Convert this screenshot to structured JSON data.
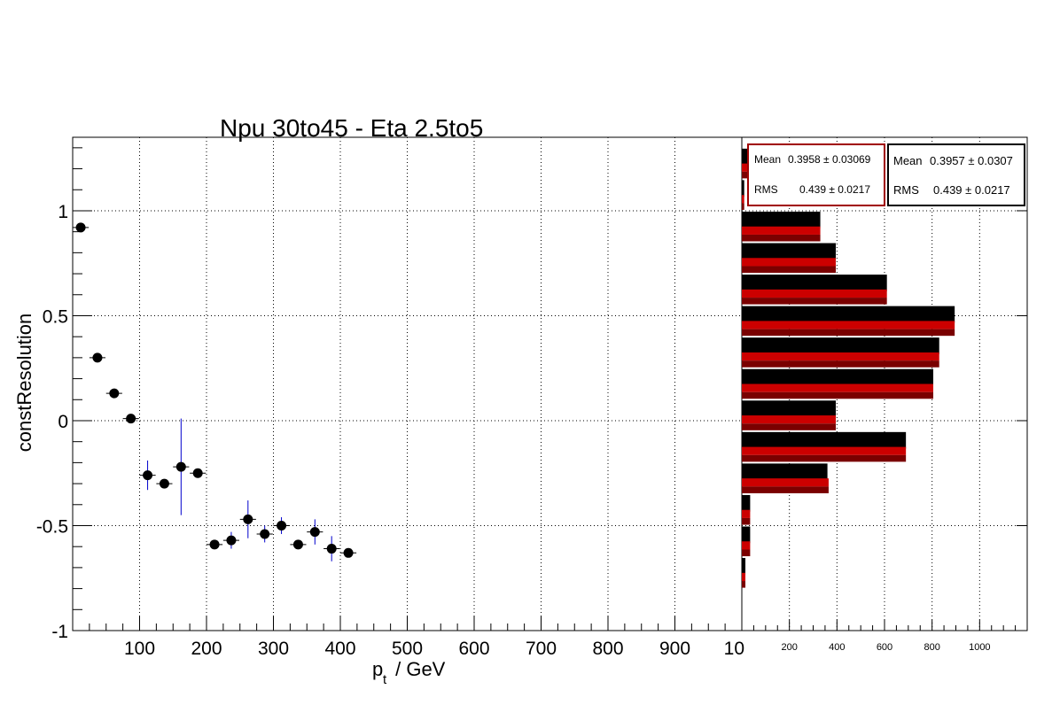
{
  "title": "Npu 30to45 - Eta 2.5to5",
  "colors": {
    "marker": "#000000",
    "error_bar_main": "#0000cc",
    "hist_black": "#000000",
    "hist_red": "#cc0000",
    "hist_red_dark": "#7a0000",
    "grid": "#000000"
  },
  "chart_data": [
    {
      "type": "scatter",
      "title": "Npu 30to45 - Eta 2.5to5",
      "xlabel_main": "p",
      "xlabel_sub": "t",
      "xlabel_rest": " / GeV",
      "ylabel": "constResolution",
      "xlim": [
        0,
        1000
      ],
      "ylim": [
        -1,
        1.35
      ],
      "xticks": [
        100,
        200,
        300,
        400,
        500,
        600,
        700,
        800,
        900
      ],
      "xtick_labels": [
        "100",
        "200",
        "300",
        "400",
        "500",
        "600",
        "700",
        "800",
        "900"
      ],
      "xtick_label_last": "10",
      "yticks": [
        -1,
        -0.5,
        0,
        0.5,
        1
      ],
      "ytick_labels": [
        "-1",
        "-0.5",
        "0",
        "0.5",
        "1"
      ],
      "grid": true,
      "points": [
        {
          "x": 12,
          "y": 0.92,
          "xerr": 12,
          "yerr": 0.01
        },
        {
          "x": 37,
          "y": 0.3,
          "xerr": 12,
          "yerr": 0.01
        },
        {
          "x": 62,
          "y": 0.13,
          "xerr": 12,
          "yerr": 0.01
        },
        {
          "x": 87,
          "y": 0.01,
          "xerr": 12,
          "yerr": 0.01
        },
        {
          "x": 112,
          "y": -0.26,
          "xerr": 12,
          "yerr": 0.07
        },
        {
          "x": 137,
          "y": -0.3,
          "xerr": 12,
          "yerr": 0.01
        },
        {
          "x": 162,
          "y": -0.22,
          "xerr": 12,
          "yerr": 0.23
        },
        {
          "x": 187,
          "y": -0.25,
          "xerr": 12,
          "yerr": 0.02
        },
        {
          "x": 212,
          "y": -0.59,
          "xerr": 12,
          "yerr": 0.01
        },
        {
          "x": 237,
          "y": -0.57,
          "xerr": 12,
          "yerr": 0.04
        },
        {
          "x": 262,
          "y": -0.47,
          "xerr": 12,
          "yerr": 0.09
        },
        {
          "x": 287,
          "y": -0.54,
          "xerr": 12,
          "yerr": 0.04
        },
        {
          "x": 312,
          "y": -0.5,
          "xerr": 12,
          "yerr": 0.04
        },
        {
          "x": 337,
          "y": -0.59,
          "xerr": 12,
          "yerr": 0.01
        },
        {
          "x": 362,
          "y": -0.53,
          "xerr": 12,
          "yerr": 0.06
        },
        {
          "x": 387,
          "y": -0.61,
          "xerr": 12,
          "yerr": 0.06
        },
        {
          "x": 412,
          "y": -0.63,
          "xerr": 12,
          "yerr": 0.02
        }
      ]
    },
    {
      "type": "bar",
      "orientation": "horizontal",
      "xlim": [
        0,
        1200
      ],
      "xticks": [
        200,
        400,
        600,
        800,
        1000
      ],
      "xtick_labels": [
        "200",
        "400",
        "600",
        "800",
        "1000"
      ],
      "ylim": [
        -1,
        1.35
      ],
      "grid": true,
      "bins": [
        {
          "ylow": 1.15,
          "yhigh": 1.3,
          "black": 370,
          "red": 330
        },
        {
          "ylow": 1.0,
          "yhigh": 1.15,
          "black": 10,
          "red": 10
        },
        {
          "ylow": 0.85,
          "yhigh": 1.0,
          "black": 330,
          "red": 330
        },
        {
          "ylow": 0.7,
          "yhigh": 0.85,
          "black": 395,
          "red": 395
        },
        {
          "ylow": 0.55,
          "yhigh": 0.7,
          "black": 610,
          "red": 610
        },
        {
          "ylow": 0.4,
          "yhigh": 0.55,
          "black": 895,
          "red": 895
        },
        {
          "ylow": 0.25,
          "yhigh": 0.4,
          "black": 830,
          "red": 830
        },
        {
          "ylow": 0.1,
          "yhigh": 0.25,
          "black": 805,
          "red": 805
        },
        {
          "ylow": -0.05,
          "yhigh": 0.1,
          "black": 395,
          "red": 395
        },
        {
          "ylow": -0.2,
          "yhigh": -0.05,
          "black": 690,
          "red": 690
        },
        {
          "ylow": -0.35,
          "yhigh": -0.2,
          "black": 360,
          "red": 365
        },
        {
          "ylow": -0.5,
          "yhigh": -0.35,
          "black": 35,
          "red": 35
        },
        {
          "ylow": -0.65,
          "yhigh": -0.5,
          "black": 35,
          "red": 35
        },
        {
          "ylow": -0.8,
          "yhigh": -0.65,
          "black": 15,
          "red": 15
        }
      ],
      "stats_red": {
        "mean_label": "Mean",
        "mean_value": "0.3958 ± 0.03069",
        "rms_label": "RMS",
        "rms_value": "0.439 ± 0.0217"
      },
      "stats_black": {
        "mean_label": "Mean",
        "mean_value": "0.3957 ± 0.0307",
        "rms_label": "RMS",
        "rms_value": "0.439 ± 0.0217"
      }
    }
  ]
}
